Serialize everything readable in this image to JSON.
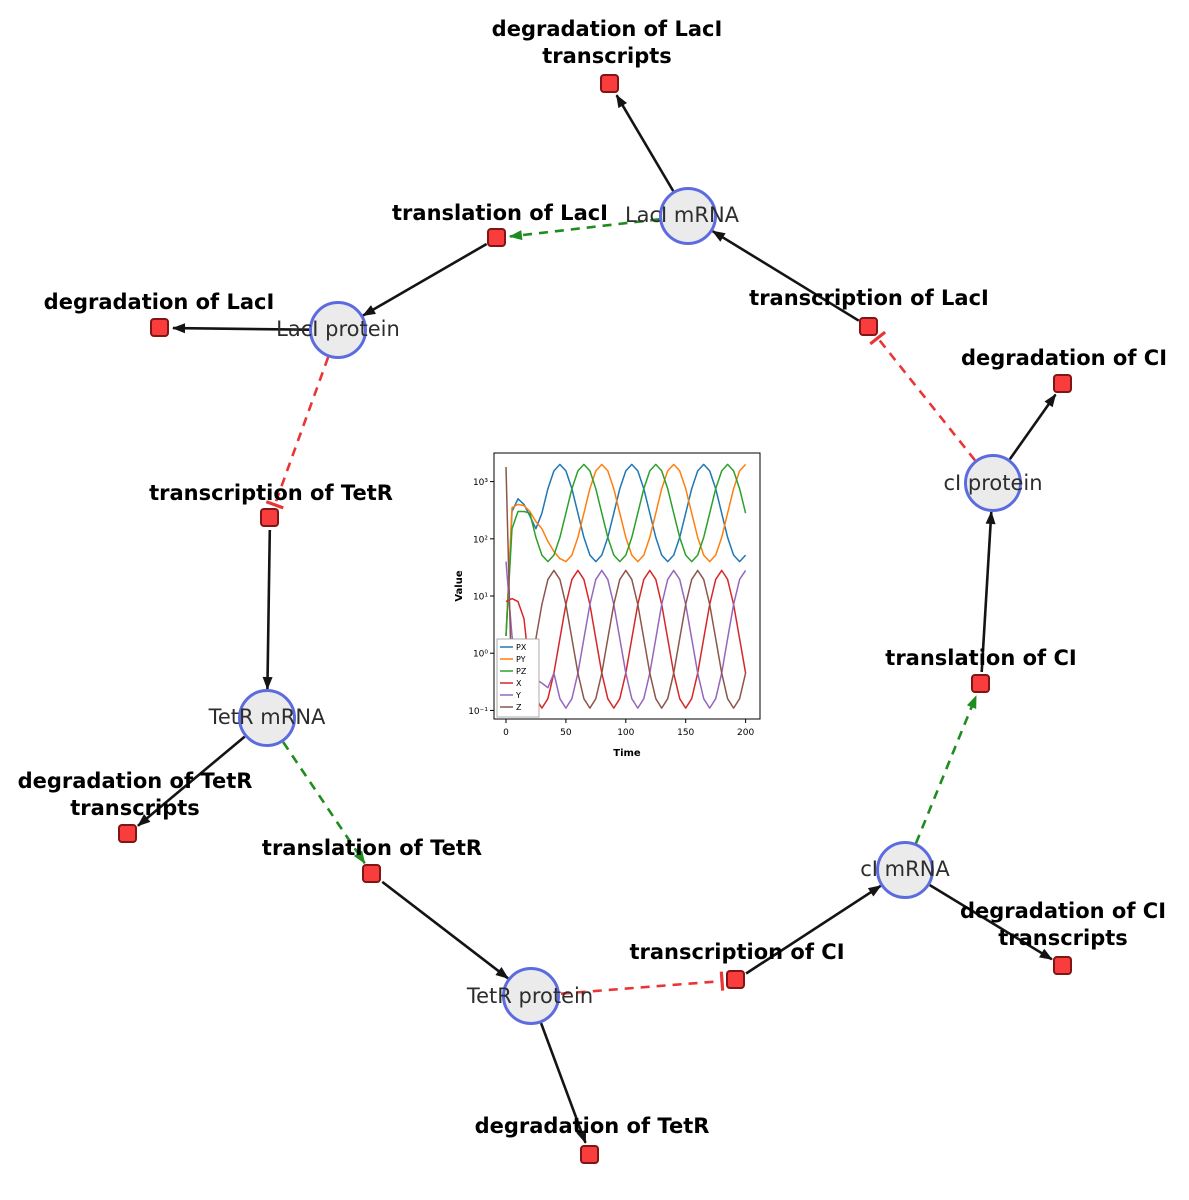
{
  "diagram": {
    "species": {
      "laci_mrna": {
        "label": "LacI mRNA"
      },
      "laci_protein": {
        "label": "LacI protein"
      },
      "tetr_mrna": {
        "label": "TetR mRNA"
      },
      "tetr_protein": {
        "label": "TetR protein"
      },
      "ci_mrna": {
        "label": "cI mRNA"
      },
      "ci_protein": {
        "label": "cI protein"
      }
    },
    "reactions": {
      "deg_laci_tx": {
        "label_line1": "degradation of LacI",
        "label_line2": "transcripts"
      },
      "translation_laci": {
        "label": "translation of LacI"
      },
      "transcription_laci": {
        "label": "transcription of LacI"
      },
      "deg_laci": {
        "label": "degradation of LacI"
      },
      "deg_ci": {
        "label": "degradation of CI"
      },
      "transcription_tetr": {
        "label": "transcription of TetR"
      },
      "translation_ci": {
        "label": "translation of CI"
      },
      "deg_tetr_tx": {
        "label_line1": "degradation of TetR",
        "label_line2": "transcripts"
      },
      "translation_tetr": {
        "label": "translation of TetR"
      },
      "deg_ci_tx": {
        "label_line1": "degradation of CI",
        "label_line2": "transcripts"
      },
      "transcription_ci": {
        "label": "transcription of CI"
      },
      "deg_tetr": {
        "label": "degradation of TetR"
      }
    },
    "colors": {
      "species_fill": "#ebebeb",
      "species_stroke": "#5c6ce0",
      "reaction_fill": "#f93c3c",
      "reaction_stroke": "#801515",
      "edge": "#141414",
      "modifier_edge": "#1f8c1f",
      "inhibition_edge": "#ea3535"
    }
  },
  "chart_data": {
    "type": "line",
    "title": "",
    "xlabel": "Time",
    "ylabel": "Value",
    "yscale": "log",
    "xlim": [
      -10,
      212
    ],
    "loglim": [
      -1.15,
      3.5
    ],
    "xticks": [
      0,
      50,
      100,
      150,
      200
    ],
    "yticks": [
      {
        "log": 3,
        "label": "10³"
      },
      {
        "log": 2,
        "label": "10²"
      },
      {
        "log": 1,
        "label": "10¹"
      },
      {
        "log": 0,
        "label": "10⁰"
      },
      {
        "log": -1,
        "label": "10⁻¹"
      }
    ],
    "legend_position": "lower-left",
    "x": [
      0,
      5,
      10,
      15,
      20,
      25,
      30,
      35,
      40,
      45,
      50,
      55,
      60,
      65,
      70,
      75,
      80,
      85,
      90,
      95,
      100,
      105,
      110,
      115,
      120,
      125,
      130,
      135,
      140,
      145,
      150,
      155,
      160,
      165,
      170,
      175,
      180,
      185,
      190,
      195,
      200
    ],
    "series": [
      {
        "name": "PX",
        "color": "#1f77b4",
        "values": [
          2,
          300,
          500,
          400,
          250,
          150,
          280,
          750,
          1540,
          1995,
          1540,
          750,
          280,
          106,
          52,
          40,
          52,
          106,
          280,
          750,
          1540,
          1995,
          1540,
          750,
          280,
          106,
          52,
          40,
          52,
          106,
          280,
          750,
          1540,
          1995,
          1540,
          750,
          280,
          106,
          52,
          40,
          52
        ]
      },
      {
        "name": "PY",
        "color": "#ff7f0e",
        "values": [
          2,
          350,
          400,
          380,
          300,
          200,
          150,
          90,
          60,
          45,
          40,
          52,
          106,
          280,
          750,
          1540,
          1995,
          1540,
          750,
          280,
          106,
          52,
          40,
          52,
          106,
          280,
          750,
          1540,
          1995,
          1540,
          750,
          280,
          106,
          52,
          40,
          52,
          106,
          280,
          750,
          1540,
          1995
        ]
      },
      {
        "name": "PZ",
        "color": "#2ca02c",
        "values": [
          2,
          150,
          300,
          300,
          280,
          106,
          52,
          40,
          52,
          106,
          280,
          750,
          1540,
          1995,
          1540,
          750,
          280,
          106,
          52,
          40,
          52,
          106,
          280,
          750,
          1540,
          1995,
          1540,
          750,
          280,
          106,
          52,
          40,
          52,
          106,
          280,
          750,
          1540,
          1995,
          1540,
          750,
          280
        ]
      },
      {
        "name": "X",
        "color": "#d62728",
        "values": [
          8,
          9,
          8,
          4,
          0.45,
          0.16,
          0.11,
          0.16,
          0.45,
          1.8,
          7.1,
          19.5,
          28,
          19.5,
          7.1,
          1.8,
          0.45,
          0.16,
          0.11,
          0.16,
          0.45,
          1.8,
          7.1,
          19.5,
          28,
          19.5,
          7.1,
          1.8,
          0.45,
          0.16,
          0.11,
          0.16,
          0.45,
          1.8,
          7.1,
          19.5,
          28,
          19.5,
          7.1,
          1.8,
          0.45
        ]
      },
      {
        "name": "Y",
        "color": "#9467bd",
        "values": [
          40,
          2,
          0.4,
          0.25,
          0.3,
          0.35,
          0.3,
          0.25,
          0.45,
          0.16,
          0.11,
          0.16,
          0.45,
          1.8,
          7.1,
          19.5,
          28,
          19.5,
          7.1,
          1.8,
          0.45,
          0.16,
          0.11,
          0.16,
          0.45,
          1.8,
          7.1,
          19.5,
          28,
          19.5,
          7.1,
          1.8,
          0.45,
          0.16,
          0.11,
          0.16,
          0.45,
          1.8,
          7.1,
          19.5,
          28
        ]
      },
      {
        "name": "Z",
        "color": "#8c564b",
        "values": [
          1800,
          0.16,
          0.11,
          0.16,
          0.45,
          1.8,
          7.1,
          19.5,
          28,
          19.5,
          7.1,
          1.8,
          0.45,
          0.16,
          0.11,
          0.16,
          0.45,
          1.8,
          7.1,
          19.5,
          28,
          19.5,
          7.1,
          1.8,
          0.45,
          0.16,
          0.11,
          0.16,
          0.45,
          1.8,
          7.1,
          19.5,
          28,
          19.5,
          7.1,
          1.8,
          0.45,
          0.16,
          0.11,
          0.16,
          0.45
        ]
      }
    ]
  }
}
